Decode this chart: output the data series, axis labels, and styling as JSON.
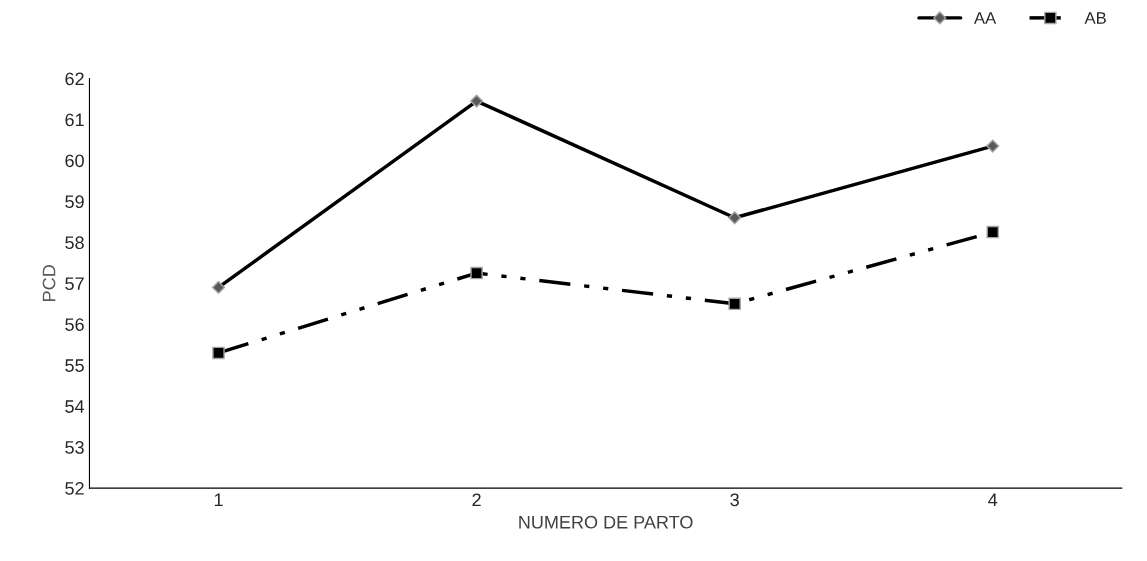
{
  "chart_data": {
    "type": "line",
    "xlabel": "NUMERO DE PARTO",
    "ylabel": "PCD",
    "categories": [
      "1",
      "2",
      "3",
      "4"
    ],
    "series": [
      {
        "name": "AA",
        "color": "#000000",
        "marker": "diamond",
        "line_style": "solid",
        "values": [
          56.9,
          61.45,
          58.6,
          60.35
        ]
      },
      {
        "name": "AB",
        "color": "#000000",
        "marker": "square",
        "line_style": "dashdot",
        "values": [
          55.3,
          57.25,
          56.5,
          58.25
        ]
      }
    ],
    "ylim": [
      52,
      62
    ],
    "yticks": [
      52,
      53,
      54,
      55,
      56,
      57,
      58,
      59,
      60,
      61,
      62
    ],
    "grid": false,
    "legend": "top right"
  }
}
